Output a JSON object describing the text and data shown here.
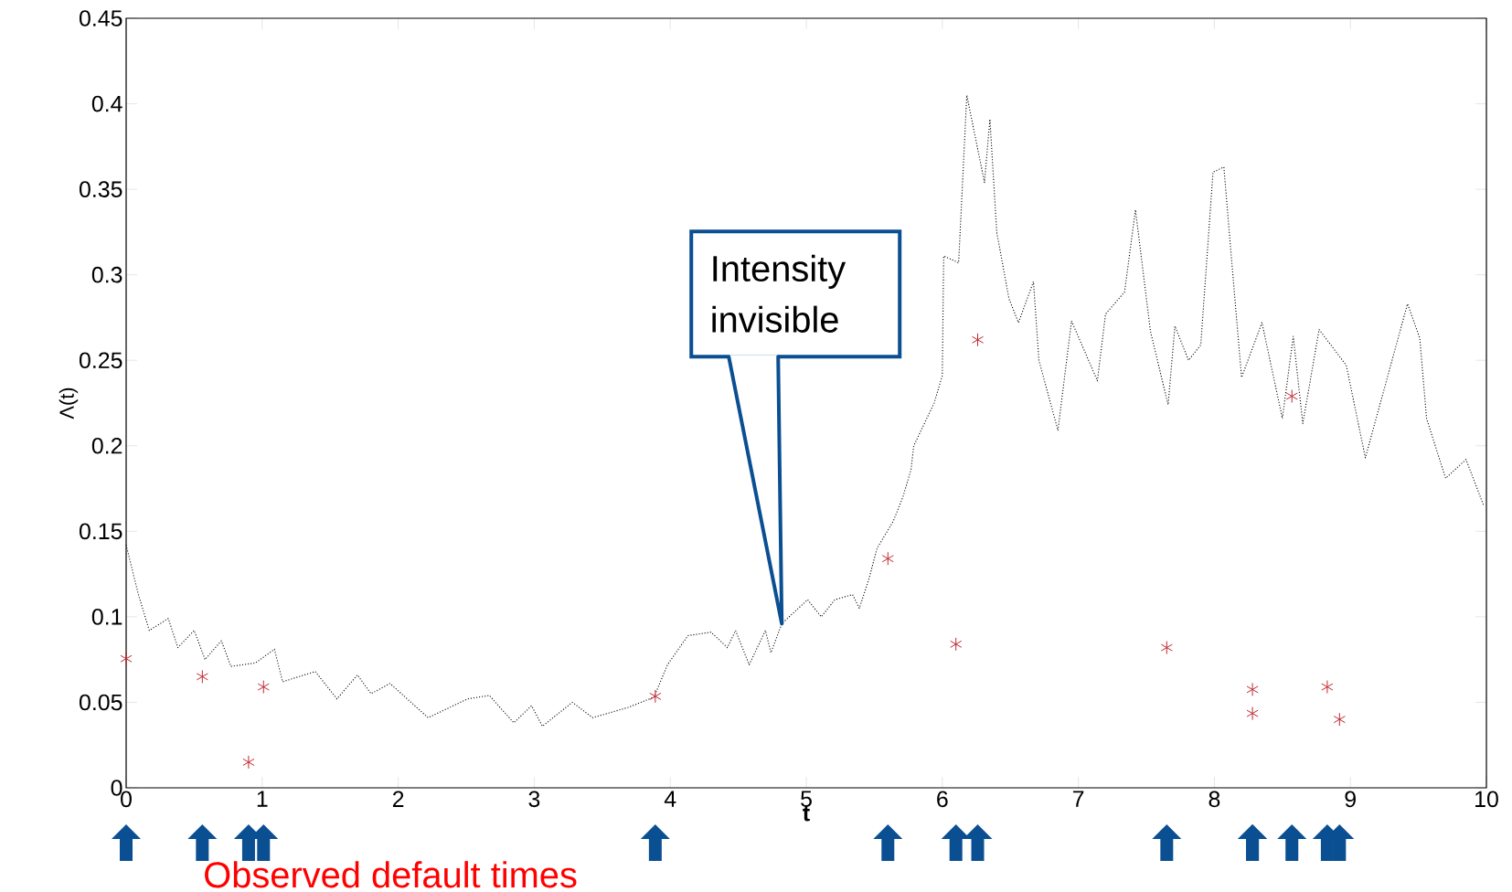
{
  "chart_data": {
    "type": "line",
    "xlabel": "t",
    "ylabel": "Λ(t)",
    "xlim": [
      0,
      10
    ],
    "ylim": [
      0,
      0.45
    ],
    "xticks": [
      0,
      1,
      2,
      3,
      4,
      5,
      6,
      7,
      8,
      9,
      10
    ],
    "yticks": [
      0,
      0.05,
      0.1,
      0.15,
      0.2,
      0.25,
      0.3,
      0.35,
      0.4,
      0.45
    ],
    "series": [
      {
        "color": "#000000",
        "line_style": "dotted",
        "marker": "none",
        "x": [
          0.0,
          0.09,
          0.17,
          0.31,
          0.38,
          0.5,
          0.58,
          0.7,
          0.77,
          0.95,
          1.09,
          1.15,
          1.39,
          1.55,
          1.7,
          1.8,
          1.94,
          2.22,
          2.51,
          2.67,
          2.85,
          2.98,
          3.06,
          3.28,
          3.43,
          3.69,
          3.88,
          3.98,
          4.13,
          4.3,
          4.42,
          4.48,
          4.58,
          4.7,
          4.74,
          4.82,
          5.01,
          5.11,
          5.21,
          5.34,
          5.39,
          5.46,
          5.52,
          5.64,
          5.71,
          5.77,
          5.79,
          5.94,
          6.0,
          6.01,
          6.12,
          6.18,
          6.31,
          6.35,
          6.4,
          6.49,
          6.56,
          6.67,
          6.71,
          6.85,
          6.95,
          7.14,
          7.2,
          7.34,
          7.42,
          7.53,
          7.66,
          7.71,
          7.81,
          7.9,
          7.99,
          8.07,
          8.12,
          8.2,
          8.35,
          8.5,
          8.58,
          8.65,
          8.77,
          8.97,
          9.11,
          9.42,
          9.51,
          9.56,
          9.7,
          9.85,
          9.98
        ],
        "values": [
          0.142,
          0.113,
          0.092,
          0.099,
          0.082,
          0.092,
          0.075,
          0.086,
          0.071,
          0.073,
          0.081,
          0.062,
          0.068,
          0.052,
          0.066,
          0.055,
          0.061,
          0.041,
          0.052,
          0.054,
          0.038,
          0.048,
          0.036,
          0.05,
          0.041,
          0.047,
          0.053,
          0.072,
          0.089,
          0.091,
          0.082,
          0.092,
          0.072,
          0.092,
          0.079,
          0.096,
          0.11,
          0.1,
          0.11,
          0.113,
          0.105,
          0.122,
          0.14,
          0.156,
          0.17,
          0.186,
          0.2,
          0.225,
          0.241,
          0.311,
          0.307,
          0.405,
          0.354,
          0.391,
          0.325,
          0.286,
          0.272,
          0.296,
          0.25,
          0.209,
          0.273,
          0.238,
          0.277,
          0.29,
          0.338,
          0.267,
          0.224,
          0.27,
          0.25,
          0.259,
          0.36,
          0.363,
          0.315,
          0.24,
          0.272,
          0.216,
          0.264,
          0.213,
          0.268,
          0.247,
          0.193,
          0.283,
          0.263,
          0.216,
          0.181,
          0.192,
          0.165
        ]
      },
      {
        "type": "scatter",
        "color": "#c0272d",
        "marker": "cross",
        "x": [
          0.0,
          0.56,
          0.9,
          1.01,
          3.89,
          5.6,
          6.1,
          6.26,
          7.65,
          8.28,
          8.28,
          8.57,
          8.83,
          8.92
        ],
        "values": [
          0.0755,
          0.065,
          0.015,
          0.059,
          0.0535,
          0.134,
          0.084,
          0.262,
          0.082,
          0.0575,
          0.0435,
          0.229,
          0.059,
          0.04
        ]
      }
    ],
    "annotations": [
      {
        "text": "Intensity invisible",
        "x": 4.82,
        "y": 0.096
      },
      "Observed default times"
    ]
  }
}
